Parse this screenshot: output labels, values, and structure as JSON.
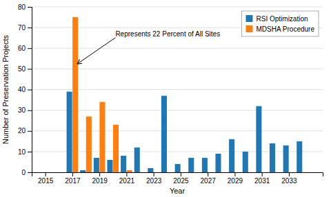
{
  "chart_data": {
    "type": "bar",
    "x": [
      2017,
      2018,
      2019,
      2020,
      2021,
      2022,
      2023,
      2024,
      2025,
      2026,
      2027,
      2028,
      2029,
      2030,
      2031,
      2032,
      2033,
      2034
    ],
    "series": [
      {
        "name": "RSI Optimization",
        "values": [
          39,
          1,
          7,
          6,
          8,
          12,
          2,
          37,
          4,
          7,
          7,
          9,
          16,
          10,
          32,
          14,
          13,
          15
        ]
      },
      {
        "name": "MDSHA Procedure",
        "values": [
          75,
          27,
          34,
          23,
          1,
          null,
          null,
          null,
          null,
          null,
          null,
          null,
          null,
          null,
          null,
          null,
          null,
          null
        ]
      }
    ],
    "xlim": [
      2014.0,
      2035.5
    ],
    "ylim": [
      0,
      80
    ],
    "xticks": [
      2015,
      2017,
      2019,
      2021,
      2023,
      2025,
      2027,
      2029,
      2031,
      2033
    ],
    "yticks": [
      0,
      10,
      20,
      30,
      40,
      50,
      60,
      70,
      80
    ],
    "x_label": "Year",
    "y_label": "Number of Preservation Projects",
    "annotations": [
      "Represents 22 Percent of All Sites"
    ],
    "grid": true,
    "legend": "upper-right"
  }
}
